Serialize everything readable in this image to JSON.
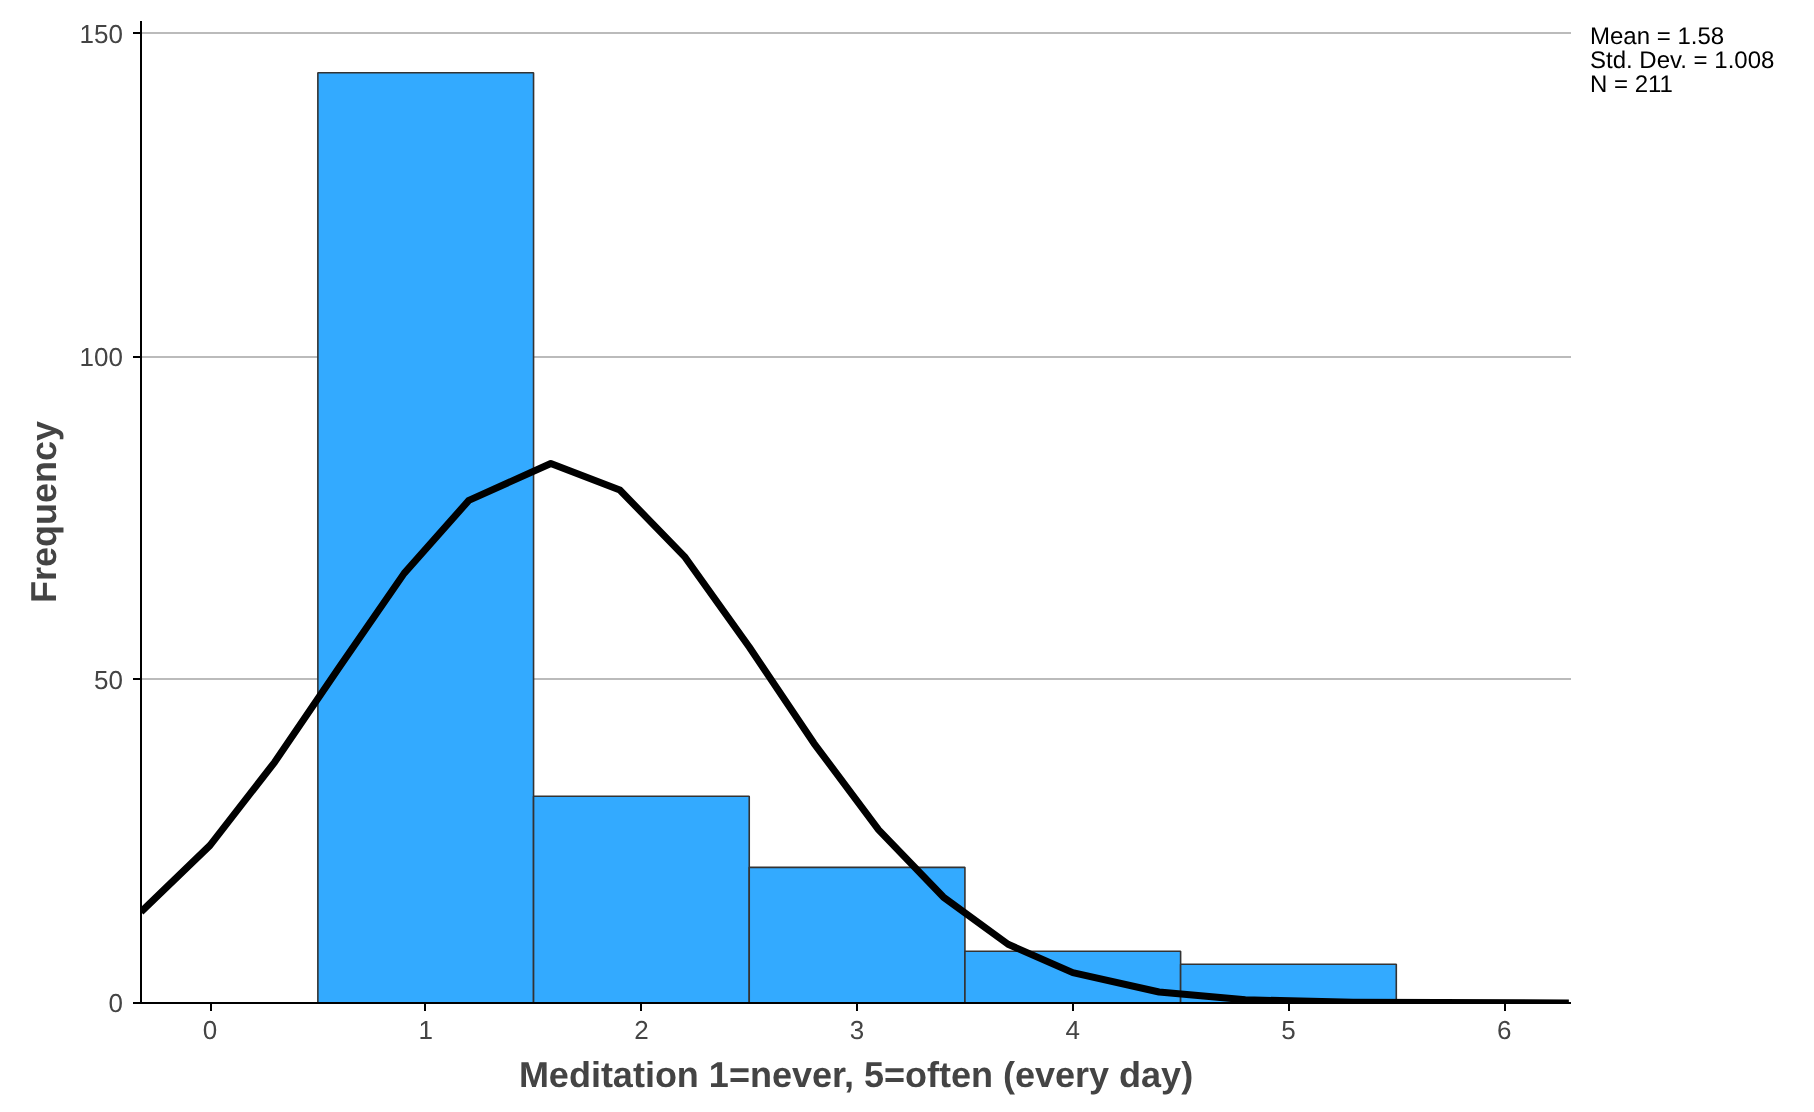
{
  "chart_data": {
    "type": "histogram",
    "xlabel": "Meditation 1=never, 5=often (every day)",
    "ylabel": "Frequency",
    "bins": [
      0.5,
      1.5,
      2.5,
      3.5,
      4.5,
      5.5
    ],
    "values": [
      144,
      32,
      21,
      8,
      6
    ],
    "color": "#33aaff",
    "series": [
      {
        "type": "line",
        "color": "#000000",
        "x": [
          -0.32,
          0,
          0.3,
          0.6,
          0.9,
          1.2,
          1.58,
          1.9,
          2.2,
          2.5,
          2.8,
          3.1,
          3.4,
          3.7,
          4.0,
          4.4,
          4.8,
          5.3,
          6.3
        ],
        "values": [
          14.1,
          24.4,
          37.3,
          52.0,
          66.5,
          77.8,
          83.5,
          79.4,
          69.1,
          55.1,
          40.2,
          26.8,
          16.4,
          9.1,
          4.7,
          1.7,
          0.5,
          0.1,
          0
        ]
      }
    ],
    "xlim": [
      -0.32,
      6.31
    ],
    "ylim": [
      0,
      152
    ],
    "xticks": [
      0,
      1,
      2,
      3,
      4,
      5,
      6
    ],
    "yticks": [
      0,
      50,
      100,
      150
    ],
    "grid": "y",
    "annotations": [
      "Mean = 1.58",
      "Std. Dev. = 1.008",
      "N = 211"
    ]
  }
}
